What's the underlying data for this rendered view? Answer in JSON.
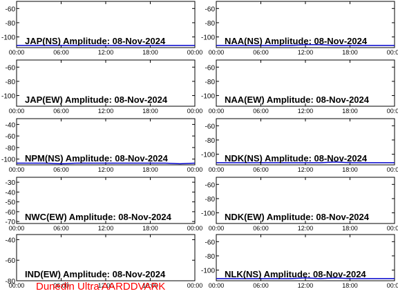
{
  "footer_text": "Dunedin Ultra AARDDVARK",
  "colors": {
    "trace": "#0000cc",
    "axis": "#000000",
    "footer": "#ff0000"
  },
  "chart_data": [
    {
      "type": "line",
      "title": "JAP(NS) Amplitude: 08-Nov-2024",
      "xticks": [
        "00:00",
        "06:00",
        "12:00",
        "18:00",
        "00:00"
      ],
      "yticks": [
        -60,
        -80,
        -100
      ],
      "ylim": [
        -115,
        -50
      ],
      "xlim": [
        0,
        24
      ],
      "series": [
        {
          "x": [
            0,
            2,
            4,
            6,
            8,
            10,
            12,
            14,
            16,
            18,
            20,
            22,
            24
          ],
          "values": [
            -112,
            -112,
            -112,
            -112,
            -112,
            -112,
            -112,
            -112,
            -112,
            -112,
            -112,
            -112,
            -112
          ]
        }
      ]
    },
    {
      "type": "line",
      "title": "NAA(NS) Amplitude: 08-Nov-2024",
      "xticks": [
        "00:00",
        "06:00",
        "12:00",
        "18:00",
        "00:00"
      ],
      "yticks": [
        -60,
        -80,
        -100
      ],
      "ylim": [
        -115,
        -50
      ],
      "xlim": [
        0,
        24
      ],
      "series": [
        {
          "x": [
            0,
            2,
            4,
            6,
            8,
            10,
            12,
            14,
            16,
            18,
            20,
            22,
            24
          ],
          "values": [
            -112,
            -112,
            -112,
            -112,
            -112,
            -112,
            -111,
            -111,
            -112,
            -112,
            -112,
            -112,
            -112
          ]
        }
      ]
    },
    {
      "type": "line",
      "title": "JAP(EW) Amplitude: 08-Nov-2024",
      "xticks": [
        "00:00",
        "06:00",
        "12:00",
        "18:00",
        "00:00"
      ],
      "yticks": [
        -60,
        -80,
        -100
      ],
      "ylim": [
        -115,
        -50
      ],
      "xlim": [
        0,
        24
      ],
      "series": []
    },
    {
      "type": "line",
      "title": "NAA(EW) Amplitude: 08-Nov-2024",
      "xticks": [
        "00:00",
        "06:00",
        "12:00",
        "18:00",
        "00:00"
      ],
      "yticks": [
        -60,
        -80,
        -100
      ],
      "ylim": [
        -115,
        -50
      ],
      "xlim": [
        0,
        24
      ],
      "series": []
    },
    {
      "type": "line",
      "title": "NPM(NS) Amplitude: 08-Nov-2024",
      "xticks": [
        "00:00",
        "06:00",
        "12:00",
        "18:00",
        "00:00"
      ],
      "yticks": [
        -40,
        -60,
        -80,
        -100
      ],
      "ylim": [
        -110,
        -30
      ],
      "xlim": [
        0,
        24
      ],
      "series": [
        {
          "x": [
            0,
            2,
            4,
            6,
            8,
            10,
            12,
            14,
            16,
            18,
            20,
            22,
            24
          ],
          "values": [
            -107,
            -107,
            -107,
            -108,
            -107,
            -107,
            -107,
            -107,
            -107,
            -107,
            -107,
            -108,
            -107
          ]
        }
      ]
    },
    {
      "type": "line",
      "title": "NDK(NS) Amplitude: 08-Nov-2024",
      "xticks": [
        "00:00",
        "06:00",
        "12:00",
        "18:00",
        "00:00"
      ],
      "yticks": [
        -60,
        -80,
        -100
      ],
      "ylim": [
        -115,
        -50
      ],
      "xlim": [
        0,
        24
      ],
      "series": [
        {
          "x": [
            0,
            2,
            4,
            6,
            8,
            10,
            12,
            14,
            16,
            18,
            20,
            22,
            24
          ],
          "values": [
            -112,
            -112,
            -112,
            -112,
            -112,
            -112,
            -112,
            -112,
            -111,
            -112,
            -112,
            -112,
            -112
          ]
        }
      ]
    },
    {
      "type": "line",
      "title": "NWC(EW) Amplitude: 08-Nov-2024",
      "xticks": [
        "00:00",
        "06:00",
        "12:00",
        "18:00",
        "00:00"
      ],
      "yticks": [
        -30,
        -40,
        -50,
        -60,
        -70
      ],
      "ylim": [
        -72,
        -25
      ],
      "xlim": [
        0,
        24
      ],
      "series": []
    },
    {
      "type": "line",
      "title": "NDK(EW) Amplitude: 08-Nov-2024",
      "xticks": [
        "00:00",
        "06:00",
        "12:00",
        "18:00",
        "00:00"
      ],
      "yticks": [
        -60,
        -80,
        -100
      ],
      "ylim": [
        -115,
        -50
      ],
      "xlim": [
        0,
        24
      ],
      "series": []
    },
    {
      "type": "line",
      "title": "IND(EW) Amplitude: 08-Nov-2024",
      "xticks": [
        "00:00",
        "06:00",
        "12:00",
        "18:00",
        "00:00"
      ],
      "yticks": [
        -40,
        -60,
        -80
      ],
      "ylim": [
        -80,
        -35
      ],
      "xlim": [
        0,
        24
      ],
      "series": []
    },
    {
      "type": "line",
      "title": "NLK(NS) Amplitude: 08-Nov-2024",
      "xticks": [
        "00:00",
        "06:00",
        "12:00",
        "18:00",
        "00:00"
      ],
      "yticks": [
        -60,
        -80,
        -100
      ],
      "ylim": [
        -115,
        -50
      ],
      "xlim": [
        0,
        24
      ],
      "series": [
        {
          "x": [
            0,
            2,
            4,
            6,
            8,
            10,
            12,
            14,
            16,
            18,
            20,
            22,
            24
          ],
          "values": [
            -112,
            -112,
            -112,
            -112,
            -112,
            -112,
            -111,
            -112,
            -111,
            -112,
            -112,
            -112,
            -112
          ]
        }
      ]
    }
  ]
}
